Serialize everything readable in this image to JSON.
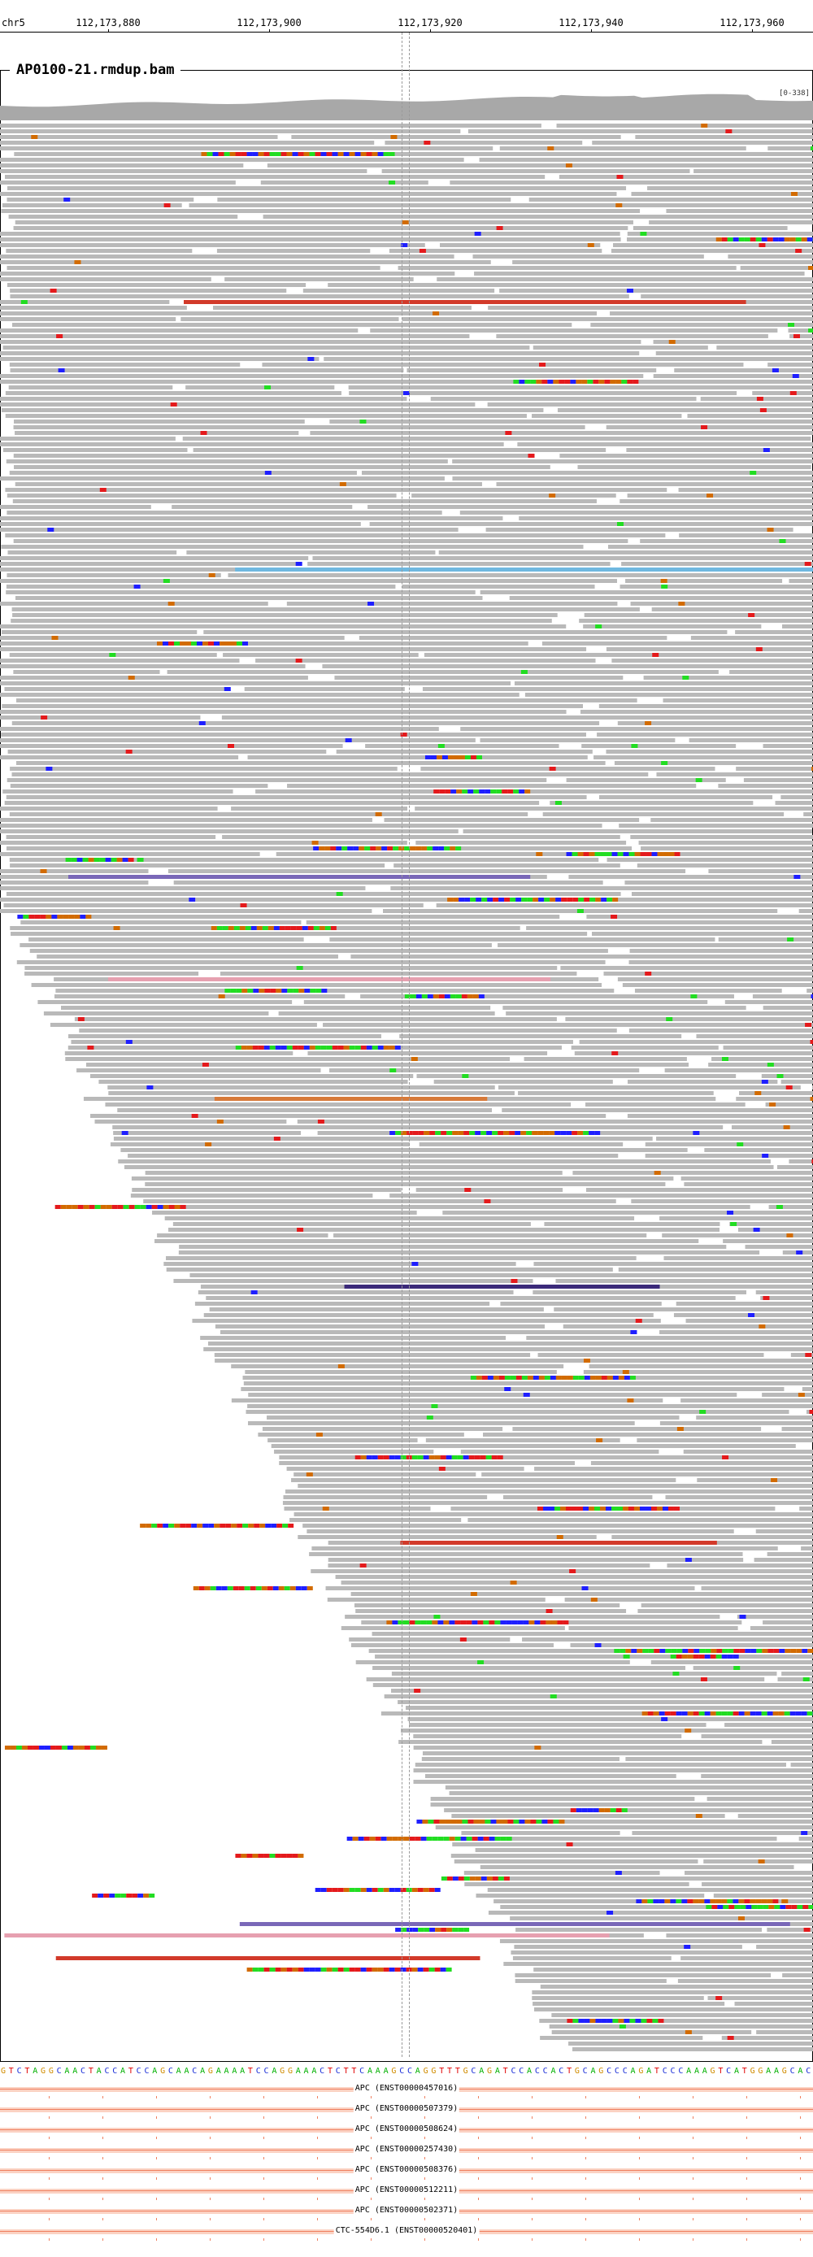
{
  "ruler": {
    "chromosome": "chr5",
    "ticks": [
      "112,173,880",
      "112,173,900",
      "112,173,920",
      "112,173,940",
      "112,173,960"
    ]
  },
  "track": {
    "name": "AP0100-21.rmdup.bam",
    "coverage_range": "[0-338]"
  },
  "reference_sequence": "GTCTAGGCAACTACCATCCAGCAACAGAAAATCCAGGAAACTCTTCAAAGCCAGGTTTGCAGATCCACCACTGCAGCCCAGATCCCAAAGTCATGGAAGCAC",
  "base_colors": {
    "A": "#00b000",
    "C": "#1b2fd8",
    "G": "#d08c00",
    "T": "#e00000"
  },
  "colors": {
    "read_gray": "#b9b9b9",
    "mismatch_red": "#e41a1c",
    "mismatch_blue": "#1f1fff",
    "mismatch_green": "#22dd22",
    "mismatch_orange": "#d26b00",
    "insert_sky": "#6fb8e0",
    "insert_purple": "#7a68b8",
    "insert_darkred": "#d23a2a",
    "insert_orange": "#d77a3a",
    "insert_navy": "#3b2a7a",
    "insert_pink": "#e6a0b0",
    "transcript_fill": "#fbd2c3",
    "transcript_line": "#f08060"
  },
  "transcripts": [
    {
      "label": "APC (ENST00000457016)"
    },
    {
      "label": "APC (ENST00000507379)"
    },
    {
      "label": "APC (ENST00000508624)"
    },
    {
      "label": "APC (ENST00000257430)"
    },
    {
      "label": "APC (ENST00000508376)"
    },
    {
      "label": "APC (ENST00000512211)"
    },
    {
      "label": "APC (ENST00000502371)"
    },
    {
      "label": "CTC-554D6.1 (ENST00000520401)"
    }
  ]
}
